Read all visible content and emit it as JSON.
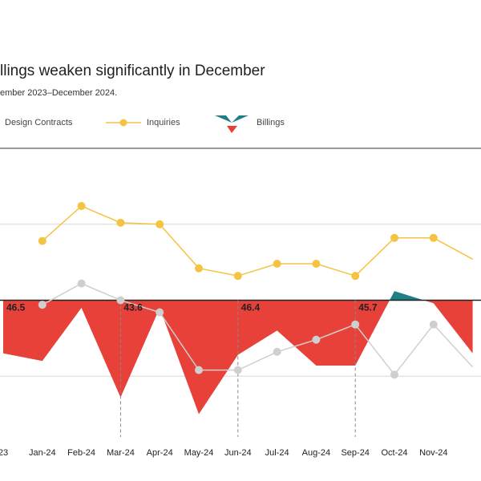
{
  "header": {
    "title": "llings weaken significantly in December",
    "subtitle": "ember 2023–December 2024."
  },
  "legend": {
    "design_contracts": "Design Contracts",
    "inquiries": "Inquiries",
    "billings": "Billings"
  },
  "colors": {
    "inquiries": "#f5c342",
    "design_contracts": "#cfcfcf",
    "billings_negative": "#e8413a",
    "billings_positive": "#1f7f86",
    "axis": "#333333",
    "grid": "#d8d8d8"
  },
  "chart_data": {
    "type": "line",
    "baseline": 50,
    "categories": [
      "23",
      "Jan-24",
      "Feb-24",
      "Mar-24",
      "Apr-24",
      "May-24",
      "Jun-24",
      "Jul-24",
      "Aug-24",
      "Sep-24",
      "Oct-24",
      "Nov-24",
      ""
    ],
    "series": [
      {
        "name": "Inquiries",
        "type": "line",
        "values": [
          null,
          53.9,
          56.2,
          55.1,
          55.0,
          52.1,
          51.6,
          52.4,
          52.4,
          51.6,
          54.1,
          54.1,
          52.7
        ]
      },
      {
        "name": "Design Contracts",
        "type": "line",
        "values": [
          null,
          49.7,
          51.1,
          50.0,
          49.2,
          45.4,
          45.4,
          46.6,
          47.4,
          48.4,
          45.1,
          48.4,
          45.6
        ]
      },
      {
        "name": "Billings",
        "type": "area",
        "values": [
          46.5,
          46.0,
          49.5,
          43.6,
          49.5,
          42.5,
          46.4,
          48.0,
          45.7,
          45.7,
          50.6,
          49.8,
          46.5
        ]
      }
    ],
    "x_partial_first": 0.55,
    "annotations": [
      {
        "category": "23",
        "label": "46.5"
      },
      {
        "category": "Mar-24",
        "label": "43.6"
      },
      {
        "category": "Jun-24",
        "label": "46.4"
      },
      {
        "category": "Sep-24",
        "label": "45.7"
      }
    ],
    "ylim": [
      41,
      60
    ],
    "grid": true
  }
}
